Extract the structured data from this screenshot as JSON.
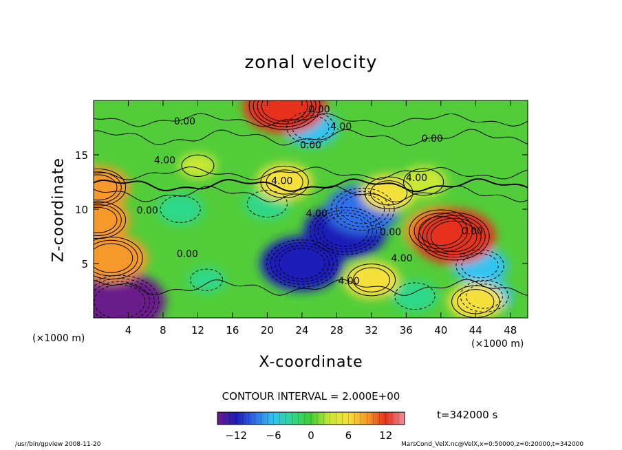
{
  "chart_data": {
    "type": "heatmap",
    "title": "zonal velocity",
    "xlabel": "X-coordinate",
    "ylabel": "Z-coordinate",
    "x_unit_label": "(×1000 m)",
    "y_unit_label": "(×1000 m)",
    "xlim": [
      0,
      50
    ],
    "ylim": [
      0,
      20
    ],
    "x_ticks": [
      4,
      8,
      12,
      16,
      20,
      24,
      28,
      32,
      36,
      40,
      44,
      48
    ],
    "y_ticks": [
      5,
      10,
      15
    ],
    "colorbar": {
      "ticks": [
        -12,
        -6,
        0,
        6,
        12
      ],
      "range": [
        -15,
        15
      ],
      "colors": [
        "#6a1b8a",
        "#1c1cb8",
        "#2f6fe8",
        "#33c4f0",
        "#2fd88a",
        "#44cc33",
        "#c9e836",
        "#f5e03a",
        "#f59a2a",
        "#e6321c",
        "#f08fa0"
      ]
    },
    "contour_interval_text": "CONTOUR INTERVAL = 2.000E+00",
    "contour_labels": [
      {
        "text": "0.00",
        "x": 26,
        "z": 18.9
      },
      {
        "text": "4.00",
        "x": 28.5,
        "z": 17.3
      },
      {
        "text": "0.00",
        "x": 10.5,
        "z": 17.8
      },
      {
        "text": "0.00",
        "x": 25,
        "z": 15.6
      },
      {
        "text": "0.00",
        "x": 39,
        "z": 16.2
      },
      {
        "text": "4.00",
        "x": 8.2,
        "z": 14.2
      },
      {
        "text": "4.00",
        "x": 21.7,
        "z": 12.3
      },
      {
        "text": "4.00",
        "x": 37.2,
        "z": 12.6
      },
      {
        "text": "4.00",
        "x": 25.7,
        "z": 9.3
      },
      {
        "text": "0.00",
        "x": 6.2,
        "z": 9.6
      },
      {
        "text": "0.00",
        "x": 10.8,
        "z": 5.6
      },
      {
        "text": "0.00",
        "x": 34.2,
        "z": 7.6
      },
      {
        "text": "4.00",
        "x": 35.5,
        "z": 5.2
      },
      {
        "text": "4.00",
        "x": 29.4,
        "z": 3.1
      },
      {
        "text": "0.00",
        "x": 43.6,
        "z": 7.7
      }
    ],
    "features": [
      {
        "x": 3,
        "z": 1.5,
        "value": -14
      },
      {
        "x": 24,
        "z": 5,
        "value": -12
      },
      {
        "x": 29,
        "z": 8,
        "value": -12
      },
      {
        "x": 31,
        "z": 10,
        "value": -10
      },
      {
        "x": 25,
        "z": 17.5,
        "value": -6
      },
      {
        "x": 10,
        "z": 10,
        "value": -4
      },
      {
        "x": 20,
        "z": 10.5,
        "value": -4
      },
      {
        "x": 44.5,
        "z": 4.8,
        "value": -6
      },
      {
        "x": 45,
        "z": 2,
        "value": -6
      },
      {
        "x": 37,
        "z": 2,
        "value": -4
      },
      {
        "x": 13,
        "z": 3.5,
        "value": -2
      },
      {
        "x": 2,
        "z": 5.5,
        "value": 10
      },
      {
        "x": 40,
        "z": 8,
        "value": 10
      },
      {
        "x": 41.5,
        "z": 7.5,
        "value": 12
      },
      {
        "x": 22,
        "z": 19.5,
        "value": 12
      },
      {
        "x": 0.5,
        "z": 12,
        "value": 8
      },
      {
        "x": 0.5,
        "z": 9,
        "value": 8
      },
      {
        "x": 34,
        "z": 11.5,
        "value": 6
      },
      {
        "x": 22,
        "z": 12.5,
        "value": 6
      },
      {
        "x": 32,
        "z": 3.5,
        "value": 6
      },
      {
        "x": 38,
        "z": 12.5,
        "value": 4
      },
      {
        "x": 12,
        "z": 14,
        "value": 2
      },
      {
        "x": 44,
        "z": 1.5,
        "value": 6
      }
    ]
  },
  "time_label": "t=342000 s",
  "footer": {
    "left": "/usr/bin/gpview  2008-11-20",
    "right": "MarsCond_VelX.nc@VelX,x=0:50000,z=0:20000,t=342000"
  }
}
